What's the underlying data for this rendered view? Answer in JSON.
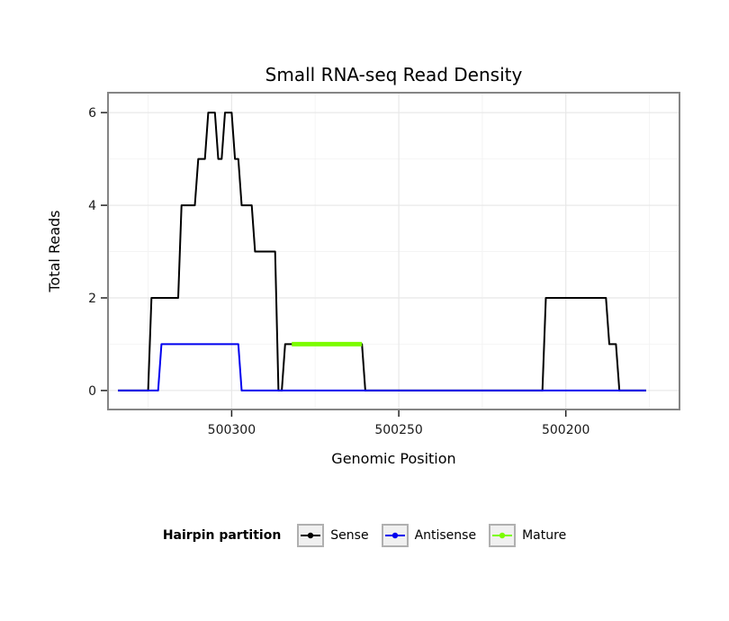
{
  "chart_data": {
    "type": "line",
    "title": "Small RNA-seq Read Density",
    "xlabel": "Genomic Position",
    "ylabel": "Total Reads",
    "x_reversed": true,
    "x_range": [
      500337,
      500166
    ],
    "y_range": [
      -0.41,
      6.43
    ],
    "x_ticks": [
      {
        "value": 500300,
        "label": "500300"
      },
      {
        "value": 500250,
        "label": "500250"
      },
      {
        "value": 500200,
        "label": "500200"
      }
    ],
    "x_minor_ticks": [
      500325,
      500275,
      500225,
      500175
    ],
    "y_ticks": [
      {
        "value": 0,
        "label": "0"
      },
      {
        "value": 2,
        "label": "2"
      },
      {
        "value": 4,
        "label": "4"
      },
      {
        "value": 6,
        "label": "6"
      }
    ],
    "y_minor_ticks": [
      1,
      3,
      5
    ],
    "grid": true,
    "colors": {
      "major_grid": "#e8e8e8",
      "minor_grid": "#f4f4f4",
      "panel_border": "#858585",
      "axis_text": "#1a1a1a",
      "tick_mark": "#222222"
    },
    "series": [
      {
        "name": "Sense",
        "color": "#000000",
        "width": 2,
        "points": [
          [
            500334,
            0
          ],
          [
            500325,
            0
          ],
          [
            500324,
            2
          ],
          [
            500316,
            2
          ],
          [
            500315,
            4
          ],
          [
            500311,
            4
          ],
          [
            500310,
            5
          ],
          [
            500308,
            5
          ],
          [
            500307,
            6
          ],
          [
            500305,
            6
          ],
          [
            500304,
            5
          ],
          [
            500303,
            5
          ],
          [
            500302,
            6
          ],
          [
            500300,
            6
          ],
          [
            500299,
            5
          ],
          [
            500298,
            5
          ],
          [
            500297,
            4
          ],
          [
            500294,
            4
          ],
          [
            500293,
            3
          ],
          [
            500287,
            3
          ],
          [
            500286,
            0
          ],
          [
            500285,
            0
          ],
          [
            500284,
            1
          ],
          [
            500261,
            1
          ],
          [
            500260,
            0
          ],
          [
            500207,
            0
          ],
          [
            500206,
            2
          ],
          [
            500188,
            2
          ],
          [
            500187,
            1
          ],
          [
            500185,
            1
          ],
          [
            500184,
            0
          ],
          [
            500176,
            0
          ]
        ]
      },
      {
        "name": "Antisense",
        "color": "#0000EE",
        "width": 2,
        "points": [
          [
            500334,
            0
          ],
          [
            500322,
            0
          ],
          [
            500321,
            1
          ],
          [
            500298,
            1
          ],
          [
            500297,
            0
          ],
          [
            500176,
            0
          ]
        ]
      },
      {
        "name": "Mature",
        "color": "#7CFC00",
        "width": 5,
        "points": [
          [
            500282,
            1
          ],
          [
            500261,
            1
          ]
        ]
      }
    ],
    "legend": {
      "title": "Hairpin partition",
      "position": "bottom"
    }
  }
}
